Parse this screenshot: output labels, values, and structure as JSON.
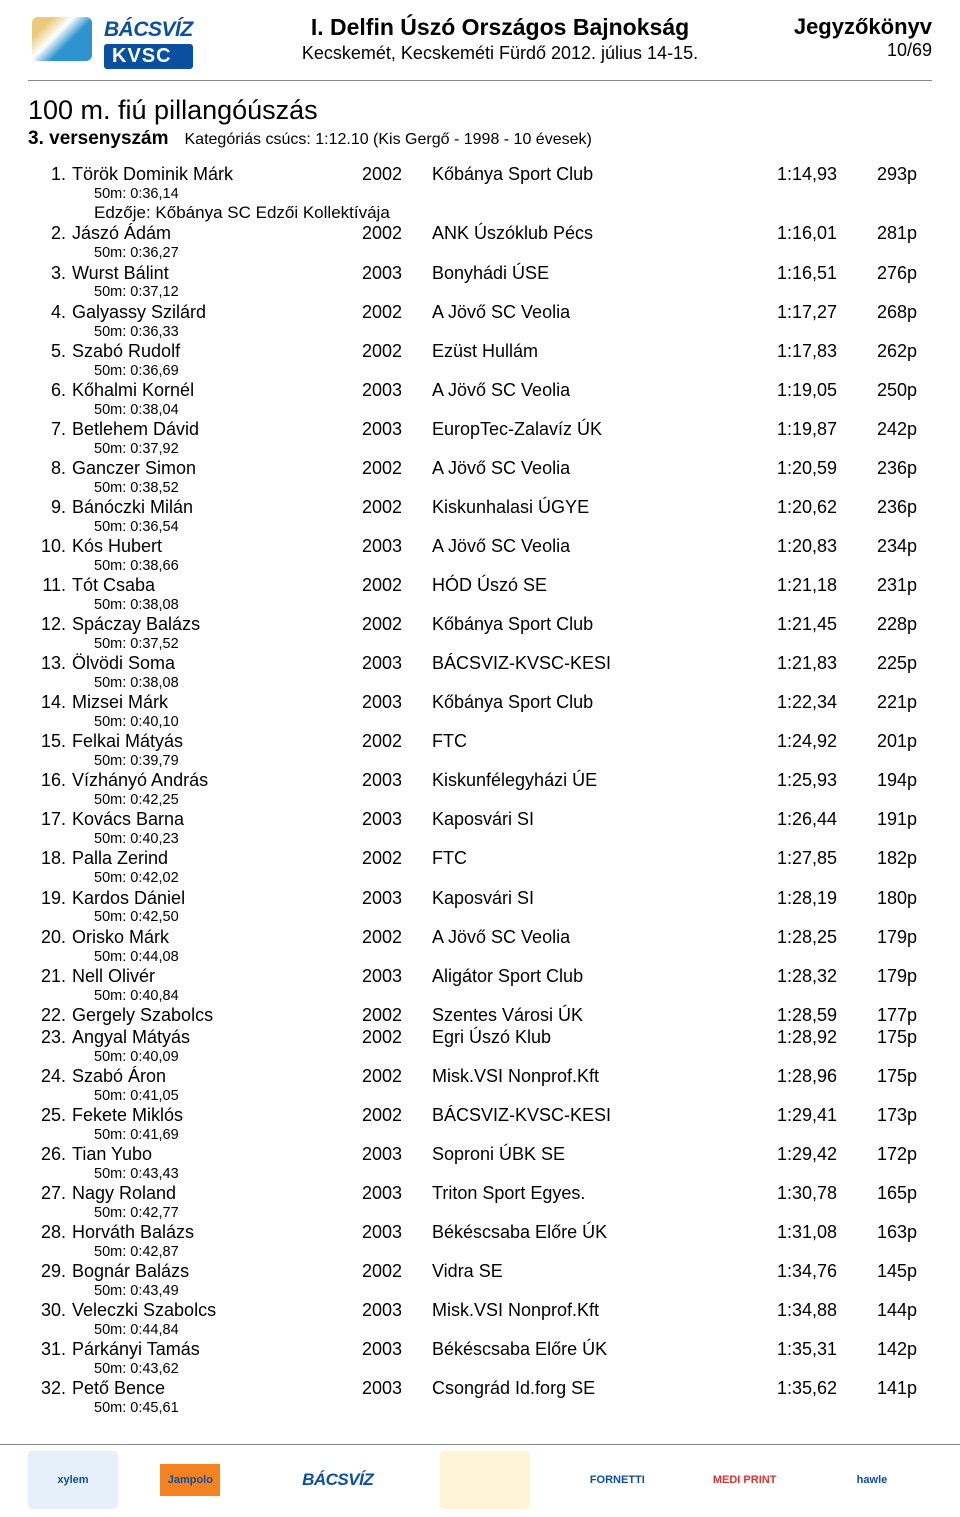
{
  "header": {
    "title": "I. Delfin Úszó Országos Bajnokság",
    "subtitle": "Kecskemét, Kecskeméti Fürdő 2012. július 14-15.",
    "right1": "Jegyzőkönyv",
    "right2": "10/69",
    "logo_text1": "BÁCSVÍZ",
    "logo_text2": "KVSC"
  },
  "event": {
    "title": "100 m. fiú pillangóúszás",
    "label": "3. versenyszám",
    "record": "Kategóriás csúcs:   1:12.10 (Kis Gergő - 1998 - 10 évesek)"
  },
  "rows": [
    {
      "rank": "1.",
      "name": "Török Dominik Márk",
      "year": "2002",
      "club": "Kőbánya Sport Club",
      "time": "1:14,93",
      "pts": "293p",
      "split": "50m:   0:36,14",
      "coach": "Edzője: Kőbánya SC Edzői Kollektívája"
    },
    {
      "rank": "2.",
      "name": "Jászó Ádám",
      "year": "2002",
      "club": "ANK Úszóklub Pécs",
      "time": "1:16,01",
      "pts": "281p",
      "split": "50m:   0:36,27"
    },
    {
      "rank": "3.",
      "name": "Wurst Bálint",
      "year": "2003",
      "club": "Bonyhádi   ÚSE",
      "time": "1:16,51",
      "pts": "276p",
      "split": "50m:   0:37,12"
    },
    {
      "rank": "4.",
      "name": "Galyassy Szilárd",
      "year": "2002",
      "club": "A Jövő SC Veolia",
      "time": "1:17,27",
      "pts": "268p",
      "split": "50m:   0:36,33"
    },
    {
      "rank": "5.",
      "name": "Szabó Rudolf",
      "year": "2002",
      "club": "Ezüst Hullám",
      "time": "1:17,83",
      "pts": "262p",
      "split": "50m:   0:36,69"
    },
    {
      "rank": "6.",
      "name": "Kőhalmi Kornél",
      "year": "2003",
      "club": "A Jövő SC Veolia",
      "time": "1:19,05",
      "pts": "250p",
      "split": "50m:   0:38,04"
    },
    {
      "rank": "7.",
      "name": "Betlehem Dávid",
      "year": "2003",
      "club": "EuropTec-Zalavíz ÚK",
      "time": "1:19,87",
      "pts": "242p",
      "split": "50m:   0:37,92"
    },
    {
      "rank": "8.",
      "name": "Ganczer Simon",
      "year": "2002",
      "club": "A Jövő SC Veolia",
      "time": "1:20,59",
      "pts": "236p",
      "split": "50m:   0:38,52"
    },
    {
      "rank": "9.",
      "name": "Bánóczki Milán",
      "year": "2002",
      "club": "Kiskunhalasi ÚGYE",
      "time": "1:20,62",
      "pts": "236p",
      "split": "50m:   0:36,54"
    },
    {
      "rank": "10.",
      "name": "Kós Hubert",
      "year": "2003",
      "club": "A Jövő SC Veolia",
      "time": "1:20,83",
      "pts": "234p",
      "split": "50m:   0:38,66"
    },
    {
      "rank": "11.",
      "name": "Tót Csaba",
      "year": "2002",
      "club": "HÓD Úszó SE",
      "time": "1:21,18",
      "pts": "231p",
      "split": "50m:   0:38,08"
    },
    {
      "rank": "12.",
      "name": "Spáczay Balázs",
      "year": "2002",
      "club": "Kőbánya Sport Club",
      "time": "1:21,45",
      "pts": "228p",
      "split": "50m:   0:37,52"
    },
    {
      "rank": "13.",
      "name": "Ölvödi Soma",
      "year": "2003",
      "club": "BÁCSVIZ-KVSC-KESI",
      "time": "1:21,83",
      "pts": "225p",
      "split": "50m:   0:38,08"
    },
    {
      "rank": "14.",
      "name": "Mizsei Márk",
      "year": "2003",
      "club": "Kőbánya Sport Club",
      "time": "1:22,34",
      "pts": "221p",
      "split": "50m:   0:40,10"
    },
    {
      "rank": "15.",
      "name": "Felkai Mátyás",
      "year": "2002",
      "club": "FTC",
      "time": "1:24,92",
      "pts": "201p",
      "split": "50m:   0:39,79"
    },
    {
      "rank": "16.",
      "name": "Vízhányó András",
      "year": "2003",
      "club": "Kiskunfélegyházi ÚE",
      "time": "1:25,93",
      "pts": "194p",
      "split": "50m:   0:42,25"
    },
    {
      "rank": "17.",
      "name": "Kovács Barna",
      "year": "2003",
      "club": "Kaposvári SI",
      "time": "1:26,44",
      "pts": "191p",
      "split": "50m:   0:40,23"
    },
    {
      "rank": "18.",
      "name": "Palla Zerind",
      "year": "2002",
      "club": "FTC",
      "time": "1:27,85",
      "pts": "182p",
      "split": "50m:   0:42,02"
    },
    {
      "rank": "19.",
      "name": "Kardos Dániel",
      "year": "2003",
      "club": "Kaposvári SI",
      "time": "1:28,19",
      "pts": "180p",
      "split": "50m:   0:42,50"
    },
    {
      "rank": "20.",
      "name": "Orisko Márk",
      "year": "2002",
      "club": "A Jövő SC Veolia",
      "time": "1:28,25",
      "pts": "179p",
      "split": "50m:   0:44,08"
    },
    {
      "rank": "21.",
      "name": "Nell Olivér",
      "year": "2003",
      "club": "Aligátor Sport Club",
      "time": "1:28,32",
      "pts": "179p",
      "split": "50m:   0:40,84"
    },
    {
      "rank": "22.",
      "name": "Gergely Szabolcs",
      "year": "2002",
      "club": "Szentes Városi ÚK",
      "time": "1:28,59",
      "pts": "177p"
    },
    {
      "rank": "23.",
      "name": "Angyal Mátyás",
      "year": "2002",
      "club": "Egri Úszó Klub",
      "time": "1:28,92",
      "pts": "175p",
      "split": "50m:   0:40,09"
    },
    {
      "rank": "24.",
      "name": "Szabó Áron",
      "year": "2002",
      "club": "Misk.VSI Nonprof.Kft",
      "time": "1:28,96",
      "pts": "175p",
      "split": "50m:   0:41,05"
    },
    {
      "rank": "25.",
      "name": "Fekete Miklós",
      "year": "2002",
      "club": "BÁCSVIZ-KVSC-KESI",
      "time": "1:29,41",
      "pts": "173p",
      "split": "50m:   0:41,69"
    },
    {
      "rank": "26.",
      "name": "Tian Yubo",
      "year": "2003",
      "club": "Soproni ÚBK SE",
      "time": "1:29,42",
      "pts": "172p",
      "split": "50m:   0:43,43"
    },
    {
      "rank": "27.",
      "name": "Nagy Roland",
      "year": "2003",
      "club": "Triton Sport Egyes.",
      "time": "1:30,78",
      "pts": "165p",
      "split": "50m:   0:42,77"
    },
    {
      "rank": "28.",
      "name": "Horváth Balázs",
      "year": "2003",
      "club": "Békéscsaba Előre ÚK",
      "time": "1:31,08",
      "pts": "163p",
      "split": "50m:   0:42,87"
    },
    {
      "rank": "29.",
      "name": "Bognár Balázs",
      "year": "2002",
      "club": "Vidra SE",
      "time": "1:34,76",
      "pts": "145p",
      "split": "50m:   0:43,49"
    },
    {
      "rank": "30.",
      "name": "Veleczki Szabolcs",
      "year": "2003",
      "club": "Misk.VSI Nonprof.Kft",
      "time": "1:34,88",
      "pts": "144p",
      "split": "50m:   0:44,84"
    },
    {
      "rank": "31.",
      "name": "Párkányi Tamás",
      "year": "2003",
      "club": "Békéscsaba Előre ÚK",
      "time": "1:35,31",
      "pts": "142p",
      "split": "50m:   0:43,62"
    },
    {
      "rank": "32.",
      "name": "Pető Bence",
      "year": "2003",
      "club": "Csongrád Id.forg SE",
      "time": "1:35,62",
      "pts": "141p",
      "split": "50m:   0:45,61"
    }
  ],
  "sponsors": [
    "xylem",
    "Jampolo",
    "BÁCSVÍZ",
    "",
    "FORNETTI",
    "MEDI PRINT",
    "hawle"
  ]
}
